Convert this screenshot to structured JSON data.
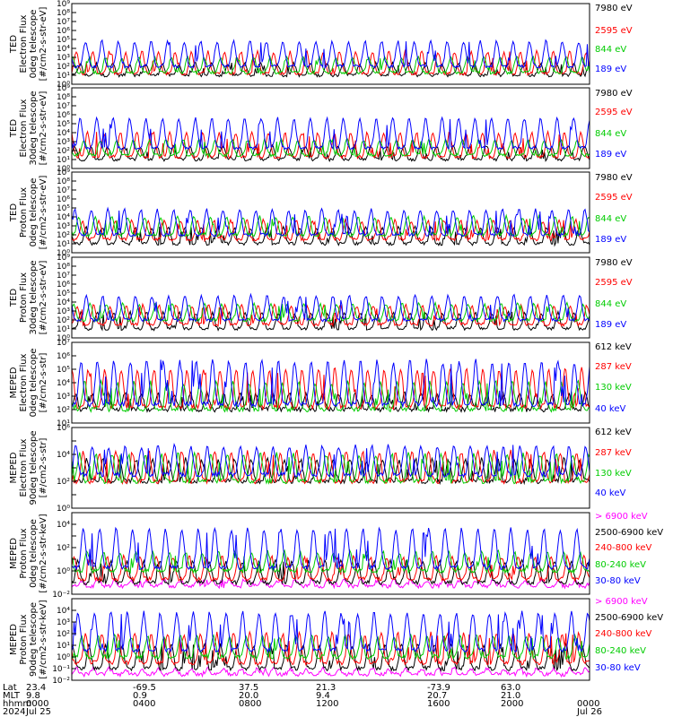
{
  "chart_data": [
    {
      "type": "line",
      "panel": 1,
      "ylabel": [
        "TED",
        "Electron Flux",
        "0deg telescope",
        "[#/cm2-s-str-eV]"
      ],
      "ylim_exp": [
        0,
        9
      ],
      "ytick_labels": [
        "10⁰",
        "10¹",
        "10²",
        "10³",
        "10⁴",
        "10⁵",
        "10⁶",
        "10⁷",
        "10⁸",
        "10⁹"
      ],
      "series": [
        {
          "name": "7980 eV",
          "color": "#000000",
          "base_exp": 1.0,
          "peak_exp": 2.3
        },
        {
          "name": "2595 eV",
          "color": "#ff0000",
          "base_exp": 1.2,
          "peak_exp": 3.6
        },
        {
          "name": "844 eV",
          "color": "#00cc00",
          "base_exp": 1.3,
          "peak_exp": 3.0
        },
        {
          "name": "189 eV",
          "color": "#0000ff",
          "base_exp": 2.0,
          "peak_exp": 4.8
        }
      ]
    },
    {
      "type": "line",
      "panel": 2,
      "ylabel": [
        "TED",
        "Electron Flux",
        "30deg telescope",
        "[#/cm2-s-str-eV]"
      ],
      "ylim_exp": [
        0,
        9
      ],
      "ytick_labels": [
        "10⁰",
        "10¹",
        "10²",
        "10³",
        "10⁴",
        "10⁵",
        "10⁶",
        "10⁷",
        "10⁸",
        "10⁹"
      ],
      "series": [
        {
          "name": "7980 eV",
          "color": "#000000",
          "base_exp": 1.0,
          "peak_exp": 2.5
        },
        {
          "name": "2595 eV",
          "color": "#ff0000",
          "base_exp": 1.3,
          "peak_exp": 4.0
        },
        {
          "name": "844 eV",
          "color": "#00cc00",
          "base_exp": 1.5,
          "peak_exp": 3.2
        },
        {
          "name": "189 eV",
          "color": "#0000ff",
          "base_exp": 2.3,
          "peak_exp": 5.6
        }
      ]
    },
    {
      "type": "line",
      "panel": 3,
      "ylabel": [
        "TED",
        "Proton Flux",
        "0deg telescope",
        "[#/cm2-s-str-eV]"
      ],
      "ylim_exp": [
        0,
        9
      ],
      "ytick_labels": [
        "10⁰",
        "10¹",
        "10²",
        "10³",
        "10⁴",
        "10⁵",
        "10⁶",
        "10⁷",
        "10⁸",
        "10⁹"
      ],
      "series": [
        {
          "name": "7980 eV",
          "color": "#000000",
          "base_exp": 1.0,
          "peak_exp": 2.8
        },
        {
          "name": "2595 eV",
          "color": "#ff0000",
          "base_exp": 1.5,
          "peak_exp": 3.6
        },
        {
          "name": "844 eV",
          "color": "#00cc00",
          "base_exp": 2.0,
          "peak_exp": 4.0
        },
        {
          "name": "189 eV",
          "color": "#0000ff",
          "base_exp": 2.0,
          "peak_exp": 4.8
        }
      ]
    },
    {
      "type": "line",
      "panel": 4,
      "ylabel": [
        "TED",
        "Proton Flux",
        "30deg telescope",
        "[#/cm2-s-str-eV]"
      ],
      "ylim_exp": [
        0,
        9
      ],
      "ytick_labels": [
        "10⁰",
        "10¹",
        "10²",
        "10³",
        "10⁴",
        "10⁵",
        "10⁶",
        "10⁷",
        "10⁸",
        "10⁹"
      ],
      "series": [
        {
          "name": "7980 eV",
          "color": "#000000",
          "base_exp": 1.0,
          "peak_exp": 2.8
        },
        {
          "name": "2595 eV",
          "color": "#ff0000",
          "base_exp": 1.5,
          "peak_exp": 3.6
        },
        {
          "name": "844 eV",
          "color": "#00cc00",
          "base_exp": 2.0,
          "peak_exp": 3.8
        },
        {
          "name": "189 eV",
          "color": "#0000ff",
          "base_exp": 2.0,
          "peak_exp": 4.7
        }
      ]
    },
    {
      "type": "line",
      "panel": 5,
      "ylabel": [
        "MEPED",
        "Electron Flux",
        "0deg telescope",
        "[#/cm2-s-str]"
      ],
      "ylim_exp": [
        1,
        7
      ],
      "ytick_labels": [
        "10¹",
        "10²",
        "10³",
        "10⁴",
        "10⁵",
        "10⁶",
        "10⁷"
      ],
      "series": [
        {
          "name": "612 keV",
          "color": "#000000",
          "base_exp": 2.0,
          "peak_exp": 3.2
        },
        {
          "name": "287 keV",
          "color": "#ff0000",
          "base_exp": 2.2,
          "peak_exp": 5.0
        },
        {
          "name": "130 keV",
          "color": "#00cc00",
          "base_exp": 2.0,
          "peak_exp": 4.0
        },
        {
          "name": "40 keV",
          "color": "#0000ff",
          "base_exp": 2.4,
          "peak_exp": 5.6
        }
      ]
    },
    {
      "type": "line",
      "panel": 6,
      "ylabel": [
        "MEPED",
        "Electron Flux",
        "90deg telescope",
        "[#/cm2-s-str]"
      ],
      "ylim_exp": [
        0,
        6
      ],
      "ytick_labels": [
        "10⁰",
        "",
        "10²",
        "",
        "10⁴",
        "",
        "10⁶"
      ],
      "series": [
        {
          "name": "612 keV",
          "color": "#000000",
          "base_exp": 2.0,
          "peak_exp": 3.6
        },
        {
          "name": "287 keV",
          "color": "#ff0000",
          "base_exp": 2.0,
          "peak_exp": 4.2
        },
        {
          "name": "130 keV",
          "color": "#00cc00",
          "base_exp": 2.0,
          "peak_exp": 4.0
        },
        {
          "name": "40 keV",
          "color": "#0000ff",
          "base_exp": 2.5,
          "peak_exp": 4.6
        }
      ]
    },
    {
      "type": "line",
      "panel": 7,
      "ylabel": [
        "MEPED",
        "Proton Flux",
        "0deg telescope",
        "[#/cm2-s-str-keV]"
      ],
      "ylim_exp": [
        -2,
        5
      ],
      "ytick_labels": [
        "10⁻²",
        "",
        "10⁰",
        "",
        "10²",
        "",
        "10⁴",
        ""
      ],
      "series": [
        {
          "name": "> 6900 keV",
          "color": "#ff00ff",
          "base_exp": -1.3,
          "peak_exp": -0.8
        },
        {
          "name": "2500-6900 keV",
          "color": "#000000",
          "base_exp": -1.0,
          "peak_exp": 0.8
        },
        {
          "name": "240-800 keV",
          "color": "#ff0000",
          "base_exp": -0.7,
          "peak_exp": 1.2
        },
        {
          "name": "80-240 keV",
          "color": "#00cc00",
          "base_exp": 0.0,
          "peak_exp": 1.6
        },
        {
          "name": "30-80 keV",
          "color": "#0000ff",
          "base_exp": 0.3,
          "peak_exp": 3.6
        }
      ]
    },
    {
      "type": "line",
      "panel": 8,
      "ylabel": [
        "MEPED",
        "Proton Flux",
        "90deg telescope",
        "[#/cm2-s-str-keV]"
      ],
      "ylim_exp": [
        -2,
        5
      ],
      "ytick_labels": [
        "10⁻²",
        "10⁻¹",
        "10⁰",
        "10¹",
        "10²",
        "10³",
        "10⁴",
        ""
      ],
      "series": [
        {
          "name": "> 6900 keV",
          "color": "#ff00ff",
          "base_exp": -1.5,
          "peak_exp": -1.0
        },
        {
          "name": "2500-6900 keV",
          "color": "#000000",
          "base_exp": -1.0,
          "peak_exp": 1.0
        },
        {
          "name": "240-800 keV",
          "color": "#ff0000",
          "base_exp": -0.5,
          "peak_exp": 2.0
        },
        {
          "name": "80-240 keV",
          "color": "#00cc00",
          "base_exp": 0.0,
          "peak_exp": 1.8
        },
        {
          "name": "30-80 keV",
          "color": "#0000ff",
          "base_exp": 0.6,
          "peak_exp": 3.8
        }
      ]
    }
  ],
  "x_axis": {
    "row_labels": [
      "Lat",
      "MLT",
      "hhmm",
      "2024"
    ],
    "ticks": [
      {
        "lat": "23.4",
        "mlt": "9.8",
        "hhmm": "0000",
        "date": "Jul 25"
      },
      {
        "lat": "-69.5",
        "mlt": "0.9",
        "hhmm": "0400",
        "date": ""
      },
      {
        "lat": "37.5",
        "mlt": "20.0",
        "hhmm": "0800",
        "date": ""
      },
      {
        "lat": "21.3",
        "mlt": "9.4",
        "hhmm": "1200",
        "date": ""
      },
      {
        "lat": "-73.9",
        "mlt": "20.7",
        "hhmm": "1600",
        "date": ""
      },
      {
        "lat": "63.0",
        "mlt": "21.0",
        "hhmm": "2000",
        "date": ""
      },
      {
        "lat": "",
        "mlt": "",
        "hhmm": "0000",
        "date": "Jul 26"
      }
    ]
  }
}
